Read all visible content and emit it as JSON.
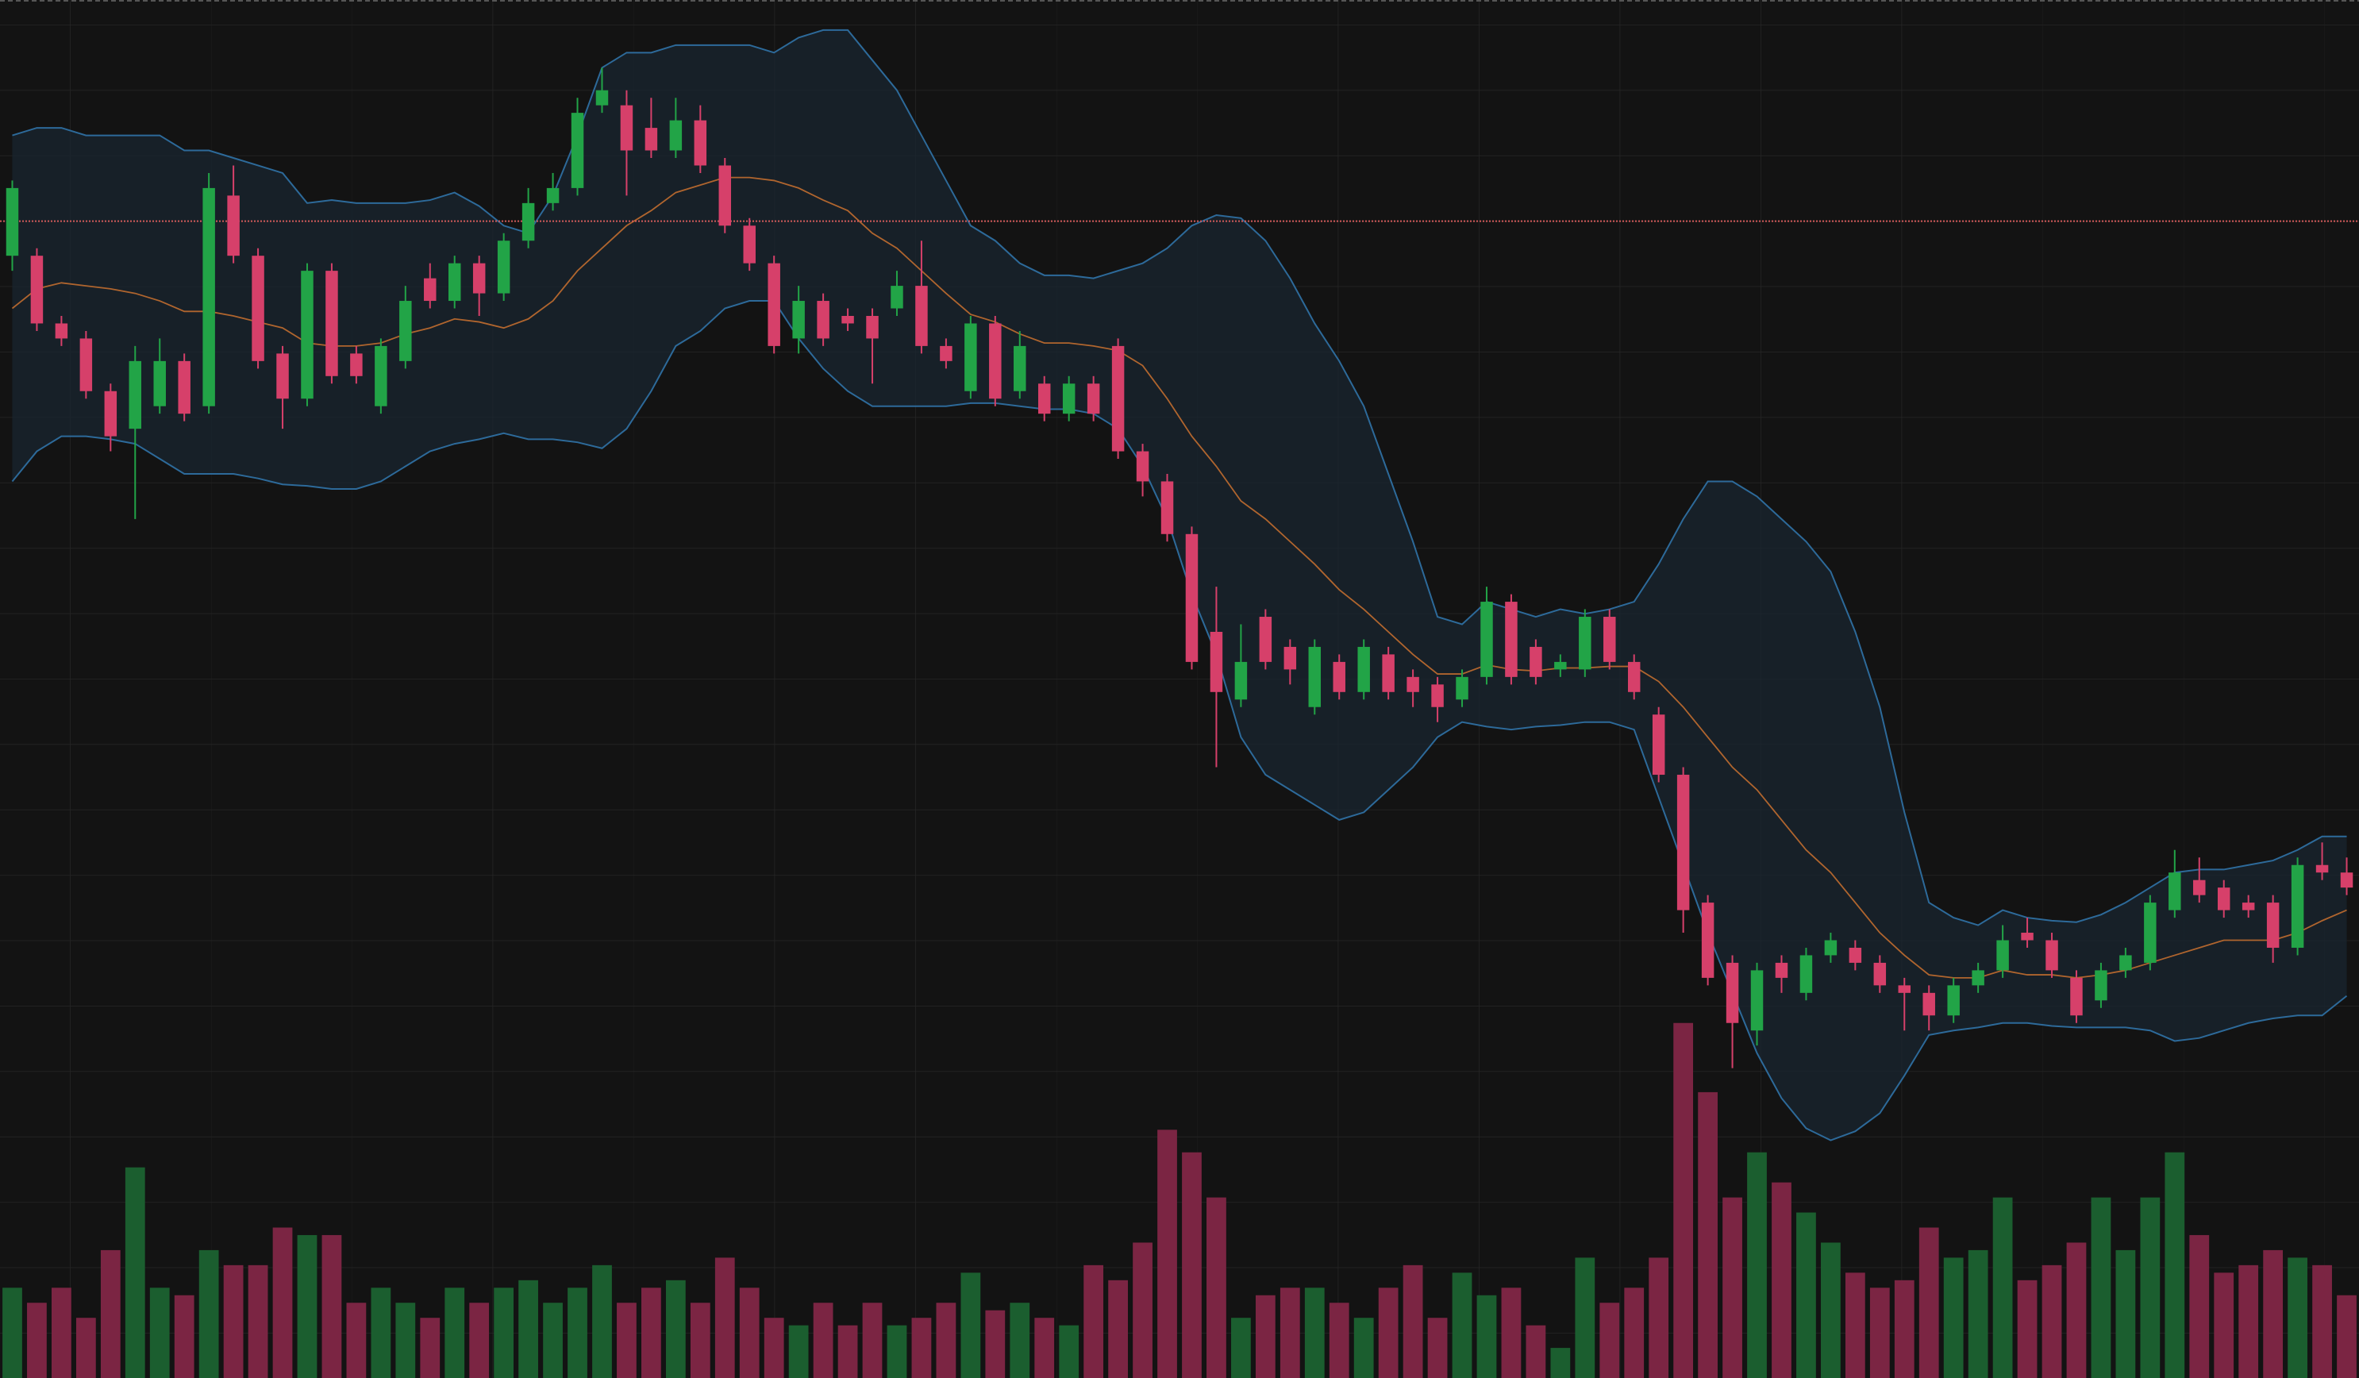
{
  "chart_data": {
    "type": "candlestick",
    "open": [
      830,
      830,
      785,
      775,
      740,
      715,
      730,
      760,
      730,
      870,
      830,
      765,
      735,
      820,
      765,
      730,
      760,
      815,
      800,
      825,
      805,
      840,
      865,
      875,
      930,
      930,
      915,
      900,
      920,
      890,
      850,
      825,
      775,
      800,
      790,
      790,
      795,
      810,
      770,
      740,
      785,
      740,
      745,
      725,
      745,
      770,
      700,
      680,
      645,
      580,
      535,
      590,
      570,
      530,
      560,
      540,
      565,
      550,
      545,
      535,
      550,
      600,
      570,
      555,
      555,
      590,
      560,
      525,
      485,
      400,
      360,
      315,
      360,
      340,
      365,
      370,
      360,
      345,
      340,
      325,
      345,
      355,
      380,
      375,
      350,
      335,
      355,
      360,
      395,
      415,
      410,
      400,
      400,
      370,
      425,
      420
    ],
    "high": [
      880,
      835,
      790,
      780,
      745,
      770,
      775,
      765,
      885,
      890,
      835,
      770,
      825,
      825,
      770,
      775,
      810,
      825,
      830,
      830,
      845,
      875,
      885,
      935,
      955,
      940,
      935,
      935,
      930,
      895,
      855,
      830,
      810,
      805,
      795,
      795,
      820,
      840,
      775,
      790,
      790,
      780,
      750,
      750,
      750,
      775,
      705,
      685,
      650,
      610,
      585,
      595,
      575,
      575,
      565,
      575,
      570,
      555,
      550,
      555,
      610,
      605,
      575,
      565,
      595,
      595,
      565,
      530,
      490,
      405,
      365,
      360,
      365,
      370,
      380,
      375,
      365,
      350,
      345,
      350,
      360,
      385,
      390,
      380,
      355,
      360,
      370,
      405,
      435,
      430,
      415,
      405,
      405,
      430,
      440,
      430
    ],
    "low": [
      820,
      780,
      770,
      735,
      700,
      655,
      725,
      720,
      725,
      825,
      755,
      715,
      730,
      745,
      745,
      725,
      755,
      795,
      795,
      790,
      800,
      835,
      860,
      870,
      925,
      870,
      895,
      895,
      885,
      845,
      820,
      765,
      765,
      770,
      780,
      745,
      790,
      765,
      755,
      735,
      730,
      735,
      720,
      720,
      720,
      695,
      670,
      640,
      555,
      490,
      530,
      555,
      545,
      525,
      535,
      535,
      535,
      530,
      520,
      530,
      545,
      545,
      545,
      550,
      550,
      555,
      535,
      480,
      380,
      345,
      290,
      305,
      340,
      335,
      360,
      355,
      340,
      315,
      315,
      320,
      340,
      350,
      370,
      350,
      320,
      330,
      350,
      355,
      390,
      400,
      390,
      390,
      360,
      365,
      415,
      405
    ],
    "close": [
      875,
      785,
      775,
      740,
      710,
      760,
      760,
      725,
      875,
      830,
      760,
      735,
      820,
      750,
      750,
      770,
      800,
      800,
      825,
      805,
      840,
      865,
      875,
      925,
      940,
      900,
      900,
      920,
      890,
      850,
      825,
      770,
      800,
      775,
      785,
      775,
      810,
      770,
      760,
      785,
      735,
      770,
      725,
      745,
      725,
      700,
      680,
      645,
      560,
      540,
      560,
      560,
      555,
      570,
      540,
      570,
      540,
      540,
      530,
      550,
      600,
      550,
      550,
      560,
      590,
      560,
      540,
      485,
      395,
      350,
      320,
      355,
      350,
      365,
      375,
      360,
      345,
      340,
      325,
      345,
      355,
      375,
      375,
      355,
      325,
      355,
      365,
      400,
      420,
      405,
      395,
      395,
      370,
      425,
      420,
      410
    ],
    "volume": [
      60,
      50,
      60,
      40,
      85,
      140,
      60,
      55,
      85,
      75,
      75,
      100,
      95,
      95,
      50,
      60,
      50,
      40,
      60,
      50,
      60,
      65,
      50,
      60,
      75,
      50,
      60,
      65,
      50,
      80,
      60,
      40,
      35,
      50,
      35,
      50,
      35,
      40,
      50,
      70,
      45,
      50,
      40,
      35,
      75,
      65,
      90,
      165,
      150,
      120,
      40,
      55,
      60,
      60,
      50,
      40,
      60,
      75,
      40,
      70,
      55,
      60,
      35,
      20,
      80,
      50,
      60,
      80,
      236,
      190,
      120,
      150,
      130,
      110,
      90,
      70,
      60,
      65,
      100,
      80,
      85,
      120,
      65,
      75,
      90,
      120,
      85,
      120,
      150,
      95,
      70,
      75,
      85,
      80,
      75,
      55
    ],
    "bands": {
      "upper": [
        910,
        915,
        915,
        910,
        910,
        910,
        910,
        900,
        900,
        895,
        890,
        885,
        865,
        867,
        865,
        865,
        865,
        867,
        872,
        863,
        850,
        845,
        870,
        910,
        955,
        965,
        965,
        970,
        970,
        970,
        970,
        965,
        975,
        980,
        980,
        960,
        940,
        910,
        880,
        850,
        840,
        825,
        817,
        817,
        815,
        820,
        825,
        835,
        850,
        857,
        855,
        840,
        815,
        785,
        760,
        730,
        685,
        640,
        590,
        585,
        600,
        595,
        590,
        595,
        592,
        595,
        600,
        625,
        655,
        680,
        680,
        670,
        655,
        640,
        620,
        580,
        530,
        460,
        400,
        390,
        385,
        395,
        390,
        388,
        387,
        392,
        400,
        410,
        420,
        422,
        422,
        425,
        428,
        435,
        444,
        444
      ],
      "middle": [
        795,
        808,
        812,
        810,
        808,
        805,
        800,
        793,
        793,
        790,
        786,
        782,
        772,
        770,
        770,
        772,
        778,
        782,
        788,
        786,
        782,
        788,
        800,
        820,
        835,
        850,
        860,
        872,
        877,
        882,
        882,
        880,
        875,
        867,
        860,
        845,
        835,
        820,
        805,
        791,
        786,
        778,
        772,
        772,
        770,
        767,
        757,
        735,
        710,
        690,
        667,
        655,
        640,
        625,
        608,
        595,
        580,
        565,
        552,
        552,
        558,
        555,
        554,
        556,
        556,
        557,
        557,
        547,
        530,
        510,
        490,
        475,
        455,
        435,
        420,
        400,
        380,
        365,
        352,
        350,
        350,
        355,
        352,
        352,
        350,
        352,
        355,
        360,
        365,
        370,
        375,
        375,
        375,
        380,
        388,
        395
      ],
      "lower": [
        680,
        700,
        710,
        710,
        708,
        705,
        695,
        685,
        685,
        685,
        682,
        678,
        677,
        675,
        675,
        680,
        690,
        700,
        705,
        708,
        712,
        708,
        708,
        706,
        702,
        715,
        740,
        770,
        780,
        795,
        800,
        800,
        775,
        755,
        740,
        730,
        730,
        730,
        730,
        732,
        732,
        730,
        728,
        728,
        725,
        715,
        690,
        655,
        605,
        565,
        510,
        485,
        475,
        465,
        455,
        460,
        475,
        490,
        510,
        520,
        517,
        515,
        517,
        518,
        520,
        520,
        515,
        470,
        425,
        380,
        340,
        300,
        270,
        250,
        242,
        248,
        260,
        285,
        312,
        315,
        317,
        320,
        320,
        318,
        317,
        317,
        317,
        315,
        308,
        310,
        315,
        320,
        323,
        325,
        325,
        338
      ]
    },
    "ylim": [
      84,
      1000
    ],
    "volume_ylim": [
      0,
      916
    ],
    "price_line": 853,
    "colors": {
      "up": "#22a447",
      "down": "#d6406a",
      "volume_up": "#1b5e2f",
      "volume_down": "#7b2543",
      "band": "#2d6a9a",
      "band_fill": "#1a2530",
      "middle": "#b0652e",
      "price_line": "#d35a5a"
    }
  }
}
